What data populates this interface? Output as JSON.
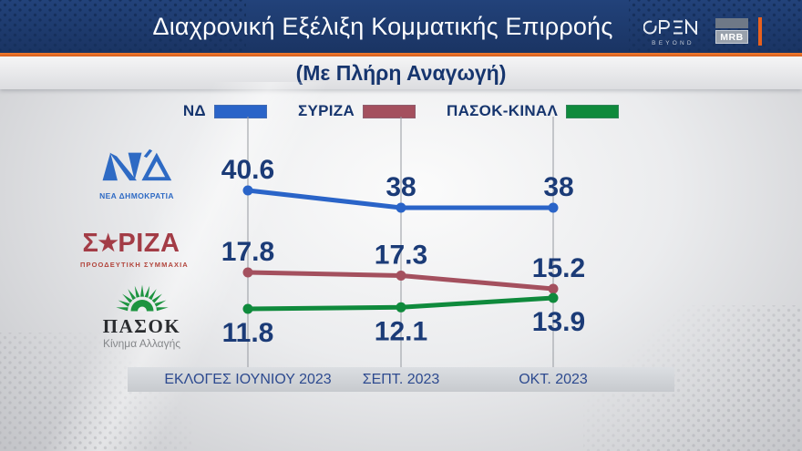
{
  "header": {
    "title": "Διαχρονική Εξέλιξη Κομματικής Επιρροής",
    "brand": {
      "open": "OPEN",
      "open_sub": "BEYOND",
      "mrb": "MRB"
    }
  },
  "subtitle": "(Με Πλήρη Αναγωγή)",
  "colors": {
    "header_navy": "#1d3a6b",
    "accent_orange": "#e8611d",
    "text_navy": "#16356e"
  },
  "legend": [
    {
      "label": "ΝΔ",
      "color": "#2a64c8"
    },
    {
      "label": "ΣΥΡΙΖΑ",
      "color": "#a4505e"
    },
    {
      "label": "ΠΑΣΟΚ-ΚΙΝΑΛ",
      "color": "#0f8a3c"
    }
  ],
  "party_logos": {
    "nd": {
      "caption": "ΝΕΑ ΔΗΜΟΚΡΑΤΙΑ"
    },
    "syriza": {
      "wordmark": "ΣΥΡΙΖΑ",
      "caption": "ΠΡΟΟΔΕΥΤΙΚΗ ΣΥΜΜΑΧΙΑ"
    },
    "pasok": {
      "wordmark": "ΠΑΣΟΚ",
      "caption": "Κίνημα Αλλαγής"
    }
  },
  "chart_data": {
    "type": "line",
    "title": "Διαχρονική Εξέλιξη Κομματικής Επιρροής",
    "subtitle": "(Με Πλήρη Αναγωγή)",
    "categories": [
      "ΕΚΛΟΓΕΣ ΙΟΥΝΙΟΥ 2023",
      "ΣΕΠΤ. 2023",
      "ΟΚΤ. 2023"
    ],
    "series": [
      {
        "name": "ΝΔ",
        "color": "#2a64c8",
        "values": [
          40.6,
          38,
          38
        ],
        "label_position": "above"
      },
      {
        "name": "ΣΥΡΙΖΑ",
        "color": "#a4505e",
        "values": [
          17.8,
          17.3,
          15.2
        ],
        "label_position": "above"
      },
      {
        "name": "ΠΑΣΟΚ-ΚΙΝΑΛ",
        "color": "#0f8a3c",
        "values": [
          11.8,
          12.1,
          13.9
        ],
        "label_position": "below"
      }
    ],
    "grid": "vertical",
    "legend_position": "top",
    "value_label_color": "#1b3b77",
    "xlabel": "",
    "ylabel": ""
  }
}
